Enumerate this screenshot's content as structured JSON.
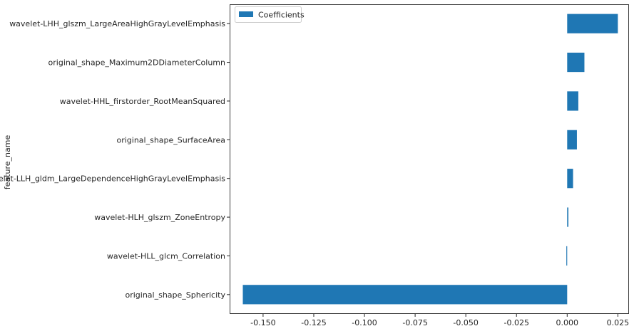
{
  "chart_data": {
    "type": "bar",
    "orientation": "horizontal",
    "title": "",
    "xlabel": "",
    "ylabel": "feature_name",
    "categories": [
      "wavelet-LHH_glszm_LargeAreaHighGrayLevelEmphasis",
      "original_shape_Maximum2DDiameterColumn",
      "wavelet-HHL_firstorder_RootMeanSquared",
      "original_shape_SurfaceArea",
      "wavelet-LLH_gldm_LargeDependenceHighGrayLevelEmphasis",
      "wavelet-HLH_glszm_ZoneEntropy",
      "wavelet-HLL_glcm_Correlation",
      "original_shape_Sphericity"
    ],
    "series": [
      {
        "name": "Coefficients",
        "color": "#1f77b4",
        "values": [
          0.025,
          0.0085,
          0.0055,
          0.0048,
          0.0029,
          0.0006,
          -0.0004,
          -0.16
        ]
      }
    ],
    "xlim": [
      -0.1665,
      0.0305
    ],
    "xticks": [
      -0.15,
      -0.125,
      -0.1,
      -0.075,
      -0.05,
      -0.025,
      0.0,
      0.025
    ],
    "xtick_labels": [
      "-0.150",
      "-0.125",
      "-0.100",
      "-0.075",
      "-0.050",
      "-0.025",
      "0.000",
      "0.025"
    ],
    "grid": false,
    "legend": {
      "position": "top-left",
      "entries": [
        "Coefficients"
      ]
    }
  }
}
